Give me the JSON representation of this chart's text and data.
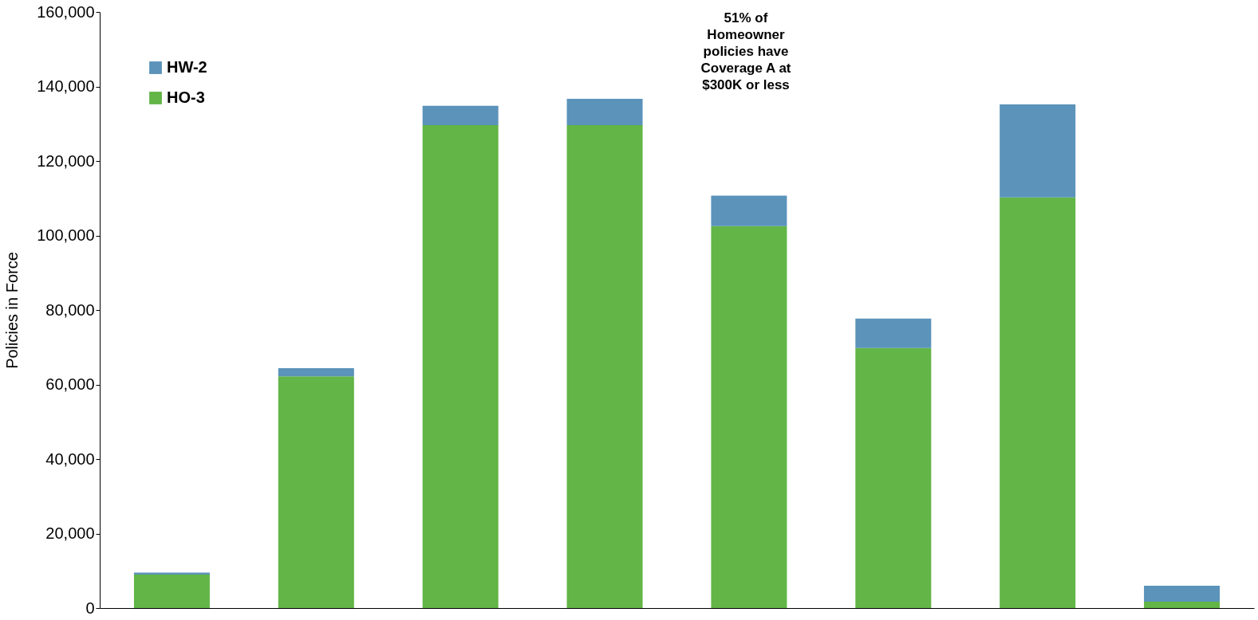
{
  "chart_data": {
    "type": "bar",
    "stacked": true,
    "ylabel": "Policies in Force",
    "categories": [
      null,
      null,
      null,
      null,
      null,
      null,
      null,
      null
    ],
    "series": [
      {
        "name": "HO-3",
        "color": "#62b546",
        "values": [
          9000,
          62200,
          129600,
          129600,
          102500,
          69800,
          110200,
          1700
        ]
      },
      {
        "name": "HW-2",
        "color": "#5b93ba",
        "values": [
          500,
          2200,
          5200,
          7100,
          8200,
          7900,
          25000,
          4300
        ]
      }
    ],
    "ylim": [
      0,
      160000
    ],
    "yticks": [
      {
        "value": 0,
        "label": "0"
      },
      {
        "value": 20000,
        "label": "20,000"
      },
      {
        "value": 40000,
        "label": "40,000"
      },
      {
        "value": 60000,
        "label": "60,000"
      },
      {
        "value": 80000,
        "label": "80,000"
      },
      {
        "value": 100000,
        "label": "100,000"
      },
      {
        "value": 120000,
        "label": "120,000"
      },
      {
        "value": 140000,
        "label": "140,000"
      },
      {
        "value": 160000,
        "label": "160,000"
      }
    ],
    "tick_labels": "y",
    "grid": false,
    "legend": "top left",
    "annotations": [
      "51% of\nHomeowner\npolicies have\nCoverage A at\n$300K or less"
    ]
  }
}
